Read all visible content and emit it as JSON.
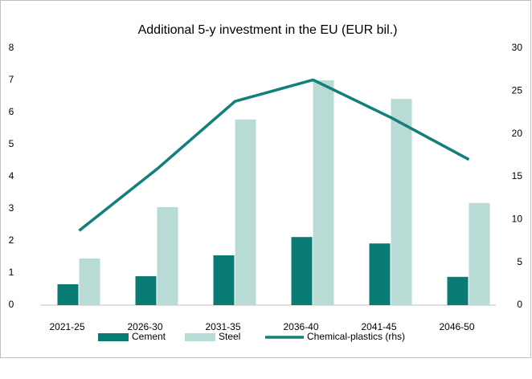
{
  "chart_data": {
    "type": "bar",
    "title": "Additional 5-y investment in the EU (EUR bil.)",
    "categories": [
      "2021-25",
      "2026-30",
      "2031-35",
      "2036-40",
      "2041-45",
      "2046-50"
    ],
    "series": [
      {
        "name": "Cement",
        "color": "#0a7b74",
        "type": "bar",
        "values": [
          0.65,
          0.9,
          1.55,
          2.12,
          1.92,
          0.88
        ]
      },
      {
        "name": "Steel",
        "color": "#b9dbd6",
        "type": "bar",
        "values": [
          1.45,
          3.05,
          5.78,
          7.0,
          6.42,
          3.18
        ]
      },
      {
        "name": "Chemical-plastics (rhs)",
        "color": "#12807a",
        "type": "line",
        "axis": "y2",
        "values": [
          8.7,
          15.9,
          23.8,
          26.3,
          21.9,
          17.0
        ]
      }
    ],
    "ylim": [
      0,
      8
    ],
    "yticks": [
      0,
      1,
      2,
      3,
      4,
      5,
      6,
      7,
      8
    ],
    "y2lim": [
      0,
      30
    ],
    "y2ticks": [
      0,
      5,
      10,
      15,
      20,
      25,
      30
    ],
    "grid": false,
    "legend": "bottom"
  }
}
